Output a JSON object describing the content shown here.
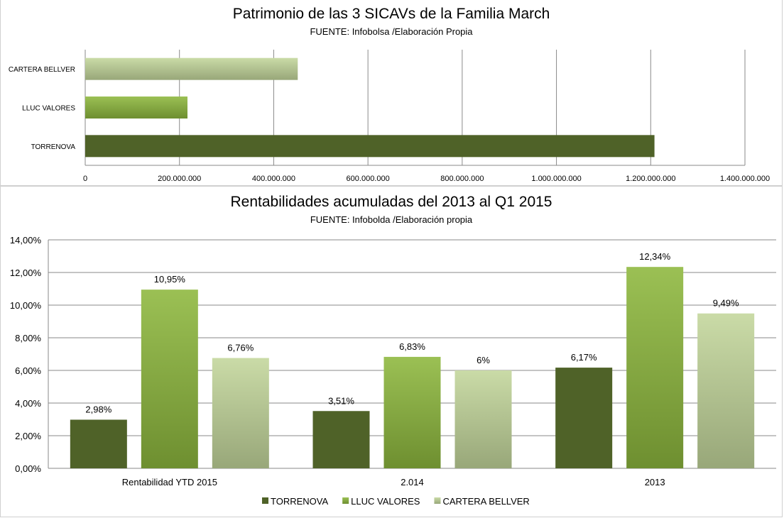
{
  "chart_data": [
    {
      "type": "bar",
      "orientation": "horizontal",
      "title": "Patrimonio de las 3 SICAVs de la Familia March",
      "subtitle": "FUENTE: Infobolsa  /Elaboración Propia",
      "categories": [
        "TORRENOVA",
        "LLUC VALORES",
        "CARTERA BELLVER"
      ],
      "values": [
        1208000000,
        217000000,
        451000000
      ],
      "colors": [
        "#4f6228",
        "#8db73d",
        "#c3d69b"
      ],
      "xlim": [
        0,
        1400000000
      ],
      "xticks": [
        0,
        200000000,
        400000000,
        600000000,
        800000000,
        1000000000,
        1200000000,
        1400000000
      ],
      "xtick_labels": [
        "0",
        "200.000.000",
        "400.000.000",
        "600.000.000",
        "800.000.000",
        "1.000.000.000",
        "1.200.000.000",
        "1.400.000.000"
      ],
      "grid": true,
      "legend": "none"
    },
    {
      "type": "bar",
      "title": "Rentabilidades acumuladas del 2013 al Q1 2015",
      "subtitle": "FUENTE: Infobolda  /Elaboración propia",
      "categories": [
        "Rentabilidad YTD 2015",
        "2.014",
        "2013"
      ],
      "series": [
        {
          "name": "TORRENOVA",
          "values": [
            2.98,
            3.51,
            6.17
          ],
          "labels": [
            "2,98%",
            "3,51%",
            "6,17%"
          ],
          "color": "#4f6228"
        },
        {
          "name": "LLUC VALORES",
          "values": [
            10.95,
            6.83,
            12.34
          ],
          "labels": [
            "10,95%",
            "6,83%",
            "12,34%"
          ],
          "color": "#8db73d"
        },
        {
          "name": "CARTERA BELLVER",
          "values": [
            6.76,
            6.0,
            9.49
          ],
          "labels": [
            "6,76%",
            "6%",
            "9,49%"
          ],
          "color": "#c3d69b"
        }
      ],
      "ylim": [
        0,
        14
      ],
      "yticks": [
        0,
        2,
        4,
        6,
        8,
        10,
        12,
        14
      ],
      "ytick_labels": [
        "0,00%",
        "2,00%",
        "4,00%",
        "6,00%",
        "8,00%",
        "10,00%",
        "12,00%",
        "14,00%"
      ],
      "grid": true,
      "legend": "bottom"
    }
  ]
}
